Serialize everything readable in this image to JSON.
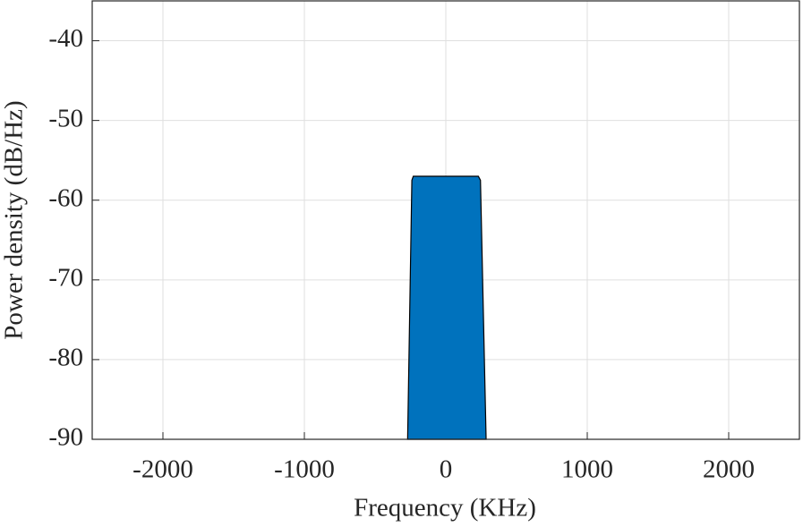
{
  "chart_data": {
    "type": "area",
    "xlabel": "Frequency (KHz)",
    "ylabel": "Power density (dB/Hz)",
    "x": [
      -270,
      -240,
      -230,
      0,
      230,
      245,
      285
    ],
    "series": [
      {
        "color": "#0072bd",
        "values": [
          -90,
          -57.5,
          -57,
          -57,
          -57,
          -57.5,
          -90
        ]
      }
    ],
    "xlim": [
      -2500,
      2500
    ],
    "xticks": [
      -2000,
      -1000,
      0,
      1000,
      2000
    ],
    "ylim": [
      -90,
      -35
    ],
    "yticks": [
      -90,
      -80,
      -70,
      -60,
      -50,
      -40
    ],
    "grid": true
  }
}
